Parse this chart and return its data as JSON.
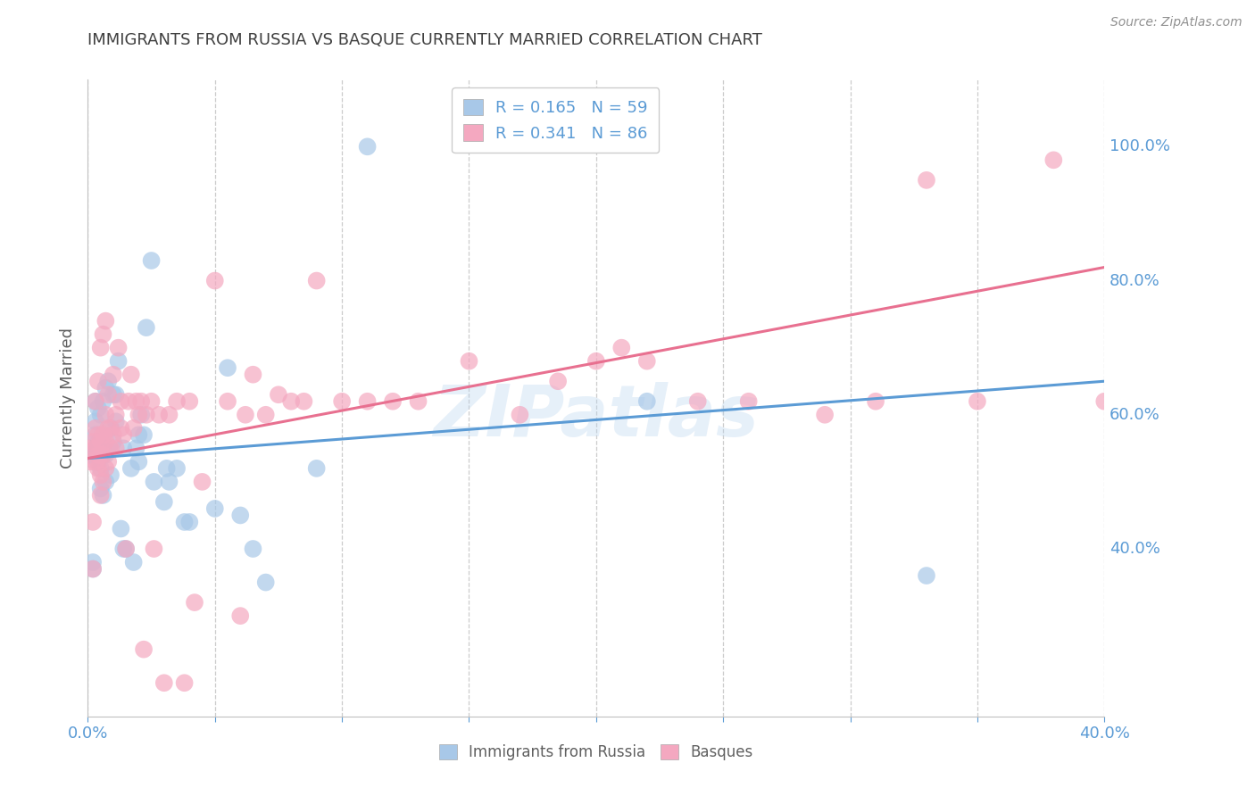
{
  "title": "IMMIGRANTS FROM RUSSIA VS BASQUE CURRENTLY MARRIED CORRELATION CHART",
  "source": "Source: ZipAtlas.com",
  "ylabel": "Currently Married",
  "legend_text_russia": "R = 0.165   N = 59",
  "legend_text_basque": "R = 0.341   N = 86",
  "legend_series": [
    "Immigrants from Russia",
    "Basques"
  ],
  "color_russia": "#a8c8e8",
  "color_basque": "#f4a8c0",
  "color_russia_line": "#5b9bd5",
  "color_basque_line": "#e87090",
  "color_axis_label": "#5b9bd5",
  "color_title": "#404040",
  "color_source": "#909090",
  "watermark": "ZIPatlas",
  "russia_x": [
    0.001,
    0.002,
    0.002,
    0.003,
    0.003,
    0.003,
    0.003,
    0.004,
    0.004,
    0.004,
    0.004,
    0.005,
    0.005,
    0.005,
    0.006,
    0.006,
    0.006,
    0.006,
    0.007,
    0.007,
    0.007,
    0.008,
    0.008,
    0.009,
    0.009,
    0.01,
    0.01,
    0.011,
    0.011,
    0.012,
    0.013,
    0.014,
    0.014,
    0.015,
    0.017,
    0.018,
    0.019,
    0.02,
    0.02,
    0.021,
    0.022,
    0.023,
    0.025,
    0.026,
    0.03,
    0.031,
    0.032,
    0.035,
    0.038,
    0.04,
    0.05,
    0.055,
    0.06,
    0.065,
    0.07,
    0.09,
    0.11,
    0.22,
    0.33
  ],
  "russia_y": [
    0.54,
    0.37,
    0.38,
    0.55,
    0.57,
    0.59,
    0.62,
    0.53,
    0.55,
    0.56,
    0.61,
    0.49,
    0.52,
    0.6,
    0.48,
    0.54,
    0.55,
    0.62,
    0.5,
    0.54,
    0.64,
    0.55,
    0.65,
    0.51,
    0.58,
    0.56,
    0.63,
    0.59,
    0.63,
    0.68,
    0.43,
    0.4,
    0.55,
    0.4,
    0.52,
    0.38,
    0.55,
    0.53,
    0.57,
    0.6,
    0.57,
    0.73,
    0.83,
    0.5,
    0.47,
    0.52,
    0.5,
    0.52,
    0.44,
    0.44,
    0.46,
    0.67,
    0.45,
    0.4,
    0.35,
    0.52,
    1.0,
    0.62,
    0.36
  ],
  "basque_x": [
    0.001,
    0.001,
    0.002,
    0.002,
    0.002,
    0.003,
    0.003,
    0.003,
    0.003,
    0.004,
    0.004,
    0.004,
    0.004,
    0.005,
    0.005,
    0.005,
    0.005,
    0.005,
    0.006,
    0.006,
    0.006,
    0.006,
    0.007,
    0.007,
    0.007,
    0.007,
    0.008,
    0.008,
    0.008,
    0.009,
    0.009,
    0.01,
    0.01,
    0.011,
    0.011,
    0.012,
    0.013,
    0.013,
    0.014,
    0.015,
    0.016,
    0.017,
    0.018,
    0.019,
    0.02,
    0.021,
    0.022,
    0.023,
    0.025,
    0.026,
    0.028,
    0.03,
    0.032,
    0.035,
    0.038,
    0.04,
    0.042,
    0.045,
    0.05,
    0.055,
    0.06,
    0.062,
    0.065,
    0.07,
    0.075,
    0.08,
    0.085,
    0.09,
    0.1,
    0.11,
    0.12,
    0.13,
    0.15,
    0.17,
    0.185,
    0.2,
    0.21,
    0.22,
    0.24,
    0.26,
    0.29,
    0.31,
    0.33,
    0.35,
    0.38,
    0.4
  ],
  "basque_y": [
    0.53,
    0.55,
    0.37,
    0.44,
    0.56,
    0.53,
    0.55,
    0.58,
    0.62,
    0.52,
    0.54,
    0.57,
    0.65,
    0.48,
    0.51,
    0.54,
    0.56,
    0.7,
    0.5,
    0.54,
    0.57,
    0.72,
    0.52,
    0.56,
    0.6,
    0.74,
    0.53,
    0.58,
    0.63,
    0.55,
    0.58,
    0.57,
    0.66,
    0.55,
    0.6,
    0.7,
    0.58,
    0.62,
    0.57,
    0.4,
    0.62,
    0.66,
    0.58,
    0.62,
    0.6,
    0.62,
    0.25,
    0.6,
    0.62,
    0.4,
    0.6,
    0.2,
    0.6,
    0.62,
    0.2,
    0.62,
    0.32,
    0.5,
    0.8,
    0.62,
    0.3,
    0.6,
    0.66,
    0.6,
    0.63,
    0.62,
    0.62,
    0.8,
    0.62,
    0.62,
    0.62,
    0.62,
    0.68,
    0.6,
    0.65,
    0.68,
    0.7,
    0.68,
    0.62,
    0.62,
    0.6,
    0.62,
    0.95,
    0.62,
    0.98,
    0.62
  ],
  "xlim": [
    0.0,
    0.4
  ],
  "ylim": [
    0.15,
    1.1
  ],
  "russia_trend_x": [
    0.0,
    0.4
  ],
  "russia_trend_y": [
    0.535,
    0.65
  ],
  "basque_trend_x": [
    0.0,
    0.4
  ],
  "basque_trend_y": [
    0.535,
    0.82
  ],
  "grid_color": "#cccccc",
  "background_color": "#ffffff",
  "xtick_positions": [
    0.0,
    0.05,
    0.1,
    0.15,
    0.2,
    0.25,
    0.3,
    0.35,
    0.4
  ],
  "ytick_right_positions": [
    0.4,
    0.6,
    0.8,
    1.0
  ],
  "ytick_right_labels": [
    "40.0%",
    "60.0%",
    "80.0%",
    "100.0%"
  ]
}
